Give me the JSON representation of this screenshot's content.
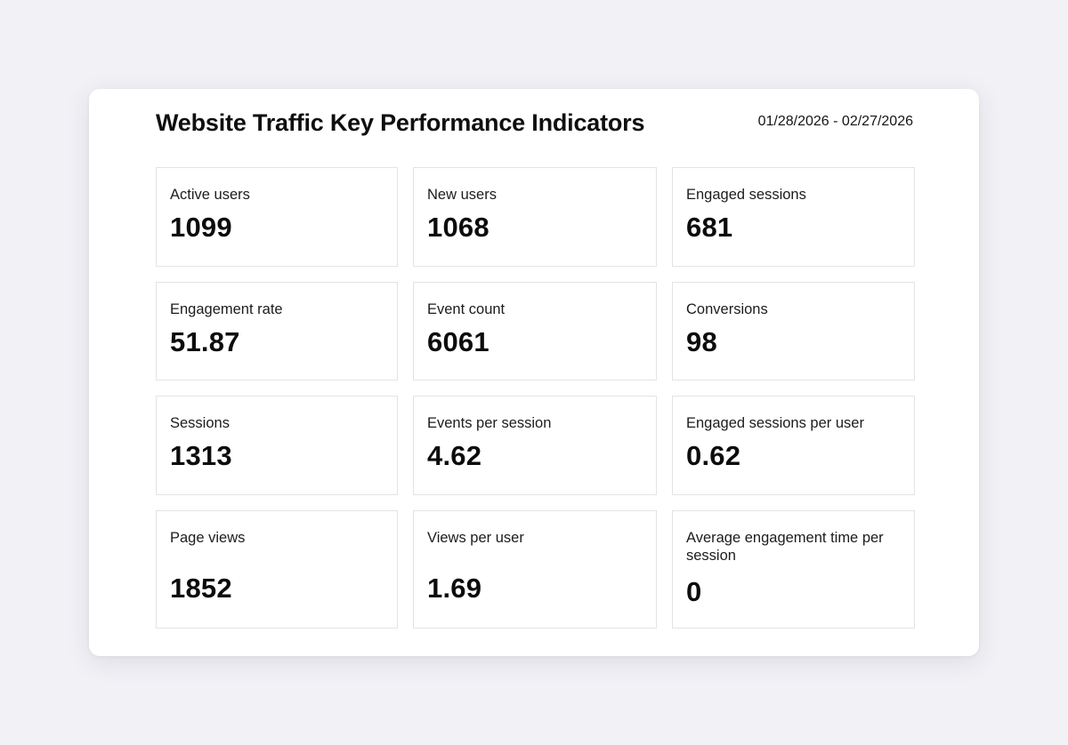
{
  "dashboard": {
    "title": "Website Traffic Key Performance Indicators",
    "date_range": "01/28/2026 - 02/27/2026"
  },
  "kpis": [
    {
      "label": "Active users",
      "value": "1099"
    },
    {
      "label": "New users",
      "value": "1068"
    },
    {
      "label": "Engaged sessions",
      "value": "681"
    },
    {
      "label": "Engagement rate",
      "value": "51.87"
    },
    {
      "label": "Event count",
      "value": "6061"
    },
    {
      "label": "Conversions",
      "value": "98"
    },
    {
      "label": "Sessions",
      "value": "1313"
    },
    {
      "label": "Events per session",
      "value": "4.62"
    },
    {
      "label": "Engaged sessions per user",
      "value": "0.62"
    },
    {
      "label": "Page views",
      "value": "1852"
    },
    {
      "label": "Views per user",
      "value": "1.69"
    },
    {
      "label": "Average engagement time per session",
      "value": "0"
    }
  ],
  "colors": {
    "page_background": "#f2f1f6",
    "card_background": "#ffffff",
    "tile_border": "#e3e3e6",
    "text": "#111111"
  }
}
